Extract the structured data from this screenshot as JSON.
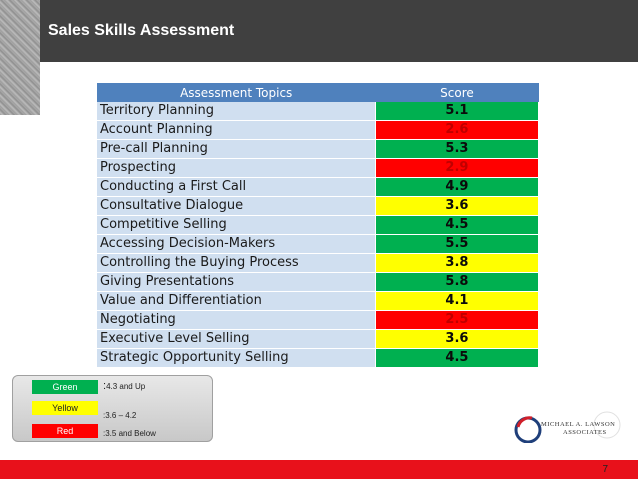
{
  "header": {
    "title": "Sales Skills Assessment"
  },
  "table": {
    "col_topics": "Assessment Topics",
    "col_score": "Score",
    "rows": [
      {
        "topic": "Territory Planning",
        "score": "5.1",
        "level": "green"
      },
      {
        "topic": "Account Planning",
        "score": "2.6",
        "level": "red"
      },
      {
        "topic": "Pre-call Planning",
        "score": "5.3",
        "level": "green"
      },
      {
        "topic": "Prospecting",
        "score": "2.9",
        "level": "red"
      },
      {
        "topic": "Conducting a First Call",
        "score": "4.9",
        "level": "green"
      },
      {
        "topic": "Consultative Dialogue",
        "score": "3.6",
        "level": "yellow"
      },
      {
        "topic": "Competitive Selling",
        "score": "4.5",
        "level": "green"
      },
      {
        "topic": "Accessing Decision-Makers",
        "score": "5.5",
        "level": "green"
      },
      {
        "topic": "Controlling the Buying Process",
        "score": "3.8",
        "level": "yellow"
      },
      {
        "topic": "Giving Presentations",
        "score": "5.8",
        "level": "green"
      },
      {
        "topic": "Value and Differentiation",
        "score": "4.1",
        "level": "yellow"
      },
      {
        "topic": "Negotiating",
        "score": "2.5",
        "level": "red"
      },
      {
        "topic": "Executive Level Selling",
        "score": "3.6",
        "level": "yellow"
      },
      {
        "topic": "Strategic Opportunity Selling",
        "score": "4.5",
        "level": "green"
      }
    ]
  },
  "colors": {
    "green": "#00b050",
    "yellow": "#ffff00",
    "red": "#ff0000",
    "red_text": "#c00000",
    "green_text": "#0b0b0b",
    "yellow_text": "#0b0b0b"
  },
  "legend": {
    "green_label": "Green",
    "green_range": ":4.3 and Up",
    "yellow_label": "Yellow",
    "yellow_range": ":3.6 – 4.2",
    "red_label": "Red",
    "red_range": ":3.5 and Below"
  },
  "logo": {
    "line1": "MICHAEL A. LAWSON",
    "line2": "ASSOCIATES"
  },
  "footer": {
    "page_number": "7"
  }
}
